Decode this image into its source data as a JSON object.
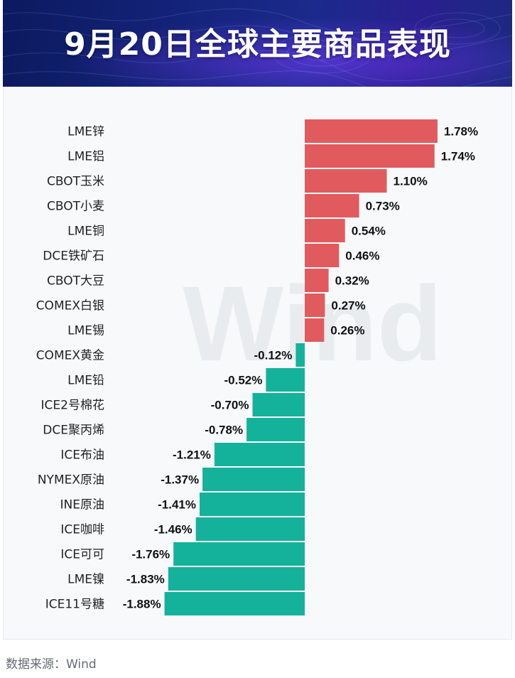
{
  "title": "9月20日全球主要商品表现",
  "source": "数据来源：Wind",
  "watermark": "Wind",
  "colors": {
    "positive": "#e15b5e",
    "negative": "#14b29b",
    "banner": "#14237a"
  },
  "chart_data": {
    "type": "bar",
    "orientation": "horizontal",
    "title": "9月20日全球主要商品表现",
    "unit": "%",
    "categories": [
      "LME锌",
      "LME铝",
      "CBOT玉米",
      "CBOT小麦",
      "LME铜",
      "DCE铁矿石",
      "CBOT大豆",
      "COMEX白银",
      "LME锡",
      "COMEX黄金",
      "LME铅",
      "ICE2号棉花",
      "DCE聚丙烯",
      "ICE布油",
      "NYMEX原油",
      "INE原油",
      "ICE咖啡",
      "ICE可可",
      "LME镍",
      "ICE11号糖"
    ],
    "values": [
      1.78,
      1.74,
      1.1,
      0.73,
      0.54,
      0.46,
      0.32,
      0.27,
      0.26,
      -0.12,
      -0.52,
      -0.7,
      -0.78,
      -1.21,
      -1.37,
      -1.41,
      -1.46,
      -1.76,
      -1.83,
      -1.88
    ],
    "labels": [
      "1.78%",
      "1.74%",
      "1.10%",
      "0.73%",
      "0.54%",
      "0.46%",
      "0.32%",
      "0.27%",
      "0.26%",
      "-0.12%",
      "-0.52%",
      "-0.70%",
      "-0.78%",
      "-1.21%",
      "-1.37%",
      "-1.41%",
      "-1.46%",
      "-1.76%",
      "-1.83%",
      "-1.88%"
    ],
    "xlim": [
      -1.88,
      1.78
    ]
  }
}
